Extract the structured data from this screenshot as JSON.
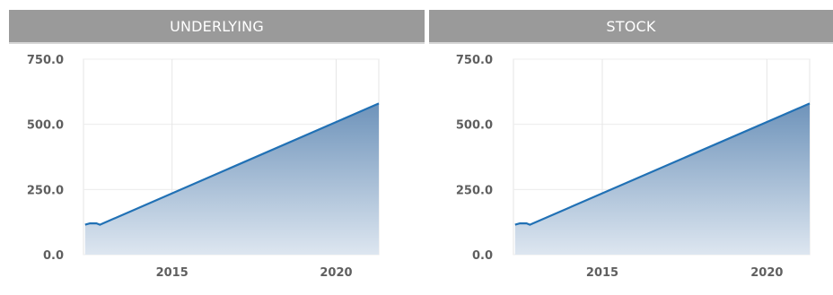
{
  "panels": [
    {
      "title": "UNDERLYING"
    },
    {
      "title": "STOCK"
    }
  ],
  "chart_data": [
    {
      "type": "area",
      "title": "UNDERLYING",
      "xlabel": "",
      "ylabel": "",
      "xlim": [
        2012.3,
        2021.3
      ],
      "ylim": [
        0,
        750
      ],
      "xticks": [
        2015,
        2020
      ],
      "xtick_labels": [
        "2015",
        "2020"
      ],
      "yticks": [
        0,
        250,
        500,
        750
      ],
      "ytick_labels": [
        "0.0",
        "250.0",
        "500.0",
        "750.0"
      ],
      "grid": true,
      "series": [
        {
          "x": [
            2012.35,
            2012.5,
            2012.7,
            2012.8,
            2021.3
          ],
          "y": [
            115,
            120,
            120,
            115,
            580
          ]
        }
      ],
      "colors": {
        "line": "#2171b5",
        "fill_top": "#6e93ba",
        "fill_bottom": "#dde6f0"
      }
    },
    {
      "type": "area",
      "title": "STOCK",
      "xlabel": "",
      "ylabel": "",
      "xlim": [
        2012.3,
        2021.3
      ],
      "ylim": [
        0,
        750
      ],
      "xticks": [
        2015,
        2020
      ],
      "xtick_labels": [
        "2015",
        "2020"
      ],
      "yticks": [
        0,
        250,
        500,
        750
      ],
      "ytick_labels": [
        "0.0",
        "250.0",
        "500.0",
        "750.0"
      ],
      "grid": true,
      "series": [
        {
          "x": [
            2012.35,
            2012.5,
            2012.7,
            2012.8,
            2021.3
          ],
          "y": [
            115,
            120,
            120,
            115,
            580
          ]
        }
      ],
      "colors": {
        "line": "#2171b5",
        "fill_top": "#6e93ba",
        "fill_bottom": "#dde6f0"
      }
    }
  ]
}
